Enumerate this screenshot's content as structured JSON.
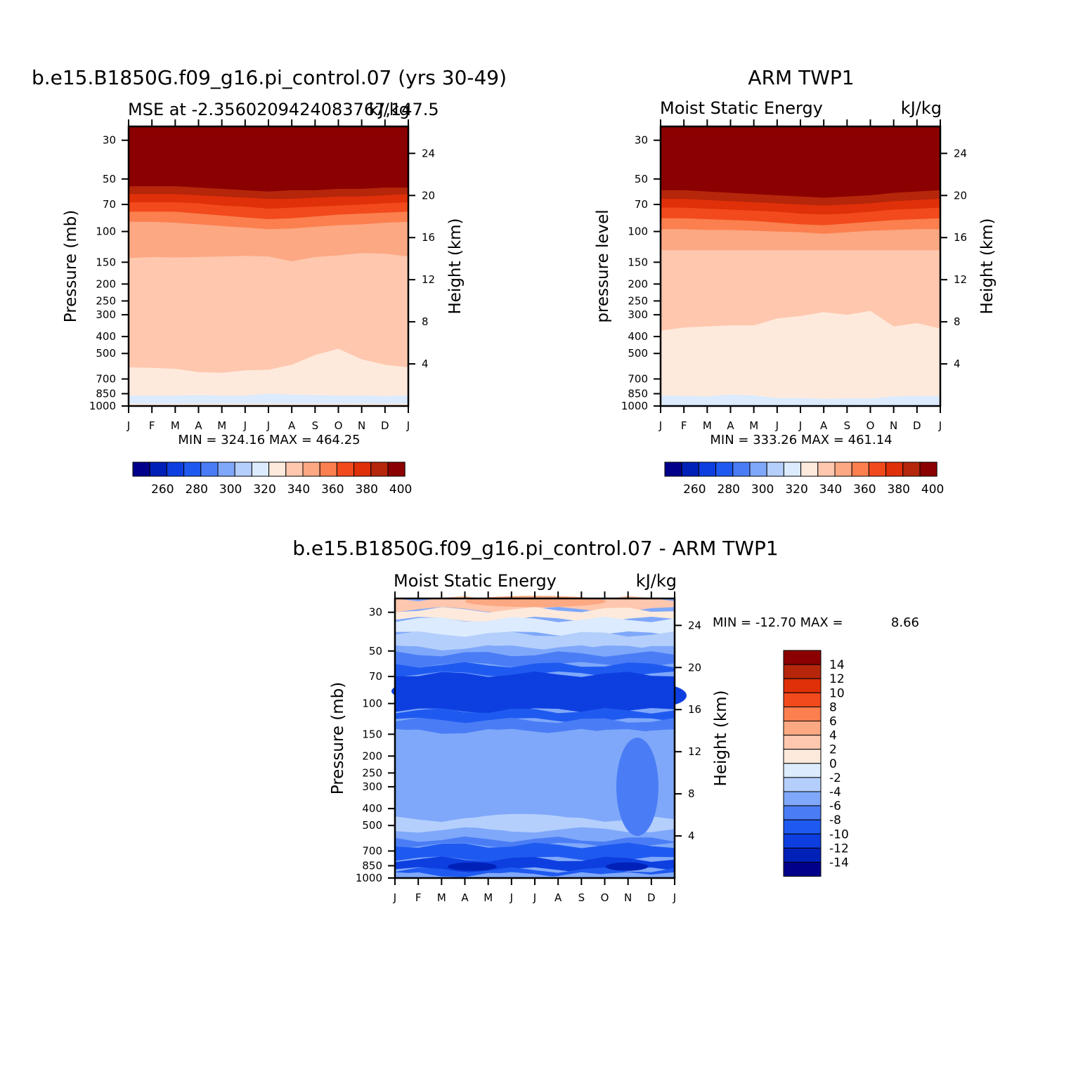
{
  "month_labels": [
    "J",
    "F",
    "M",
    "A",
    "M",
    "J",
    "J",
    "A",
    "S",
    "O",
    "N",
    "D",
    "J"
  ],
  "pressure_ticks": [
    30,
    50,
    70,
    100,
    150,
    200,
    250,
    300,
    400,
    500,
    700,
    850,
    1000
  ],
  "height_ticks": [
    4,
    8,
    12,
    16,
    20,
    24
  ],
  "colors": {
    "abs_palette": [
      "#00008b",
      "#0021b8",
      "#0d3fe0",
      "#1f5af0",
      "#4a7df5",
      "#7fa8fa",
      "#b5cffc",
      "#dcebfe",
      "#feeadc",
      "#fec7ae",
      "#fca882",
      "#fb7f4f",
      "#f24a1c",
      "#e03009",
      "#b5260b",
      "#8b0000"
    ],
    "diff_palette": [
      "#00008b",
      "#0021b8",
      "#0d3fe0",
      "#1f5af0",
      "#4a7df5",
      "#7fa8fa",
      "#b5cffc",
      "#dcebfe",
      "#feeadc",
      "#fec7ae",
      "#fca882",
      "#fb7f4f",
      "#f24a1c",
      "#e03009",
      "#b5260b",
      "#8b0000"
    ]
  },
  "panels": {
    "model": {
      "main_title": "b.e15.B1850G.f09_g16.pi_control.07 (yrs 30-49)",
      "left_title": "MSE at -2.3560209424083767,147.5",
      "right_title": "kJ/kg",
      "ylabel_left": "Pressure (mb)",
      "ylabel_right": "Height (km)",
      "stats": "MIN = 324.16 MAX = 464.25"
    },
    "obs": {
      "main_title": "ARM TWP1",
      "left_title": "Moist Static Energy",
      "right_title": "kJ/kg",
      "ylabel_left": "pressure level",
      "ylabel_right": "Height (km)",
      "stats": "MIN = 333.26 MAX = 461.14"
    },
    "diff": {
      "main_title": "b.e15.B1850G.f09_g16.pi_control.07 - ARM TWP1",
      "left_title": "Moist Static Energy",
      "right_title": "kJ/kg",
      "ylabel_left": "Pressure (mb)",
      "ylabel_right": "Height (km)",
      "stats_label": "MIN = -12.70 MAX =",
      "stats_max": "8.66"
    }
  },
  "colorbars": {
    "abs_labels": [
      "260",
      "280",
      "300",
      "320",
      "340",
      "360",
      "380",
      "400"
    ],
    "diff_labels": [
      "14",
      "12",
      "10",
      "8",
      "6",
      "4",
      "2",
      "0",
      "-2",
      "-4",
      "-6",
      "-8",
      "-10",
      "-12",
      "-14"
    ]
  },
  "chart_data": [
    {
      "type": "heatmap",
      "title": "b.e15.B1850G.f09_g16.pi_control.07 (yrs 30-49)",
      "subtitle": "MSE at -2.3560209424083767,147.5",
      "units": "kJ/kg",
      "ylabel": "Pressure (mb)",
      "y2label": "Height (km)",
      "x_categories": [
        "J",
        "F",
        "M",
        "A",
        "M",
        "J",
        "J",
        "A",
        "S",
        "O",
        "N",
        "D",
        "J"
      ],
      "y_pressure_ticks": [
        30,
        50,
        70,
        100,
        150,
        200,
        250,
        300,
        400,
        500,
        700,
        850,
        1000
      ],
      "y_log": true,
      "contour_levels": [
        250,
        260,
        270,
        280,
        290,
        300,
        310,
        320,
        330,
        340,
        350,
        360,
        370,
        380,
        390,
        400
      ],
      "boundaries": [
        {
          "level_above": 390,
          "pressures": [
            55,
            55,
            55,
            56,
            57,
            58,
            59,
            58,
            58,
            57,
            57,
            56,
            56
          ]
        },
        {
          "level_above": 380,
          "pressures": [
            61,
            61,
            61,
            62,
            63,
            64,
            65,
            65,
            64,
            63,
            63,
            62,
            61
          ]
        },
        {
          "level_above": 370,
          "pressures": [
            68,
            68,
            68,
            69,
            71,
            72,
            74,
            73,
            72,
            71,
            70,
            69,
            68
          ]
        },
        {
          "level_above": 360,
          "pressures": [
            77,
            77,
            77,
            79,
            81,
            83,
            85,
            84,
            82,
            80,
            79,
            78,
            77
          ]
        },
        {
          "level_above": 350,
          "pressures": [
            88,
            88,
            89,
            91,
            93,
            95,
            97,
            96,
            94,
            92,
            91,
            89,
            88
          ]
        },
        {
          "level_above": 340,
          "pressures": [
            142,
            140,
            141,
            140,
            139,
            138,
            139,
            148,
            140,
            137,
            133,
            134,
            139
          ]
        },
        {
          "level_above": 330,
          "pressures": [
            600,
            605,
            612,
            640,
            645,
            625,
            620,
            580,
            510,
            470,
            540,
            580,
            600
          ]
        },
        {
          "level_above": 320,
          "pressures": [
            870,
            870,
            870,
            865,
            870,
            870,
            850,
            860,
            865,
            870,
            870,
            875,
            870
          ]
        },
        {
          "level_above": 330,
          "pressures": [
            970,
            972,
            972,
            970,
            970,
            972,
            970,
            972,
            972,
            972,
            970,
            972,
            970
          ]
        }
      ],
      "value_range": {
        "min": 324.16,
        "max": 464.25
      }
    },
    {
      "type": "heatmap",
      "title": "ARM TWP1",
      "subtitle": "Moist Static Energy",
      "units": "kJ/kg",
      "ylabel": "pressure level",
      "y2label": "Height (km)",
      "x_categories": [
        "J",
        "F",
        "M",
        "A",
        "M",
        "J",
        "J",
        "A",
        "S",
        "O",
        "N",
        "D",
        "J"
      ],
      "y_pressure_ticks": [
        30,
        50,
        70,
        100,
        150,
        200,
        250,
        300,
        400,
        500,
        700,
        850,
        1000
      ],
      "y_log": true,
      "contour_levels": [
        250,
        260,
        270,
        280,
        290,
        300,
        310,
        320,
        330,
        340,
        350,
        360,
        370,
        380,
        390,
        400
      ],
      "boundaries": [
        {
          "level_above": 390,
          "pressures": [
            58,
            58,
            59,
            60,
            61,
            62,
            63,
            64,
            63,
            62,
            60,
            59,
            58
          ]
        },
        {
          "level_above": 380,
          "pressures": [
            65,
            65,
            66,
            67,
            68,
            69,
            70,
            71,
            70,
            69,
            67,
            66,
            65
          ]
        },
        {
          "level_above": 370,
          "pressures": [
            73,
            73,
            74,
            75,
            76,
            77,
            79,
            80,
            79,
            77,
            75,
            74,
            73
          ]
        },
        {
          "level_above": 360,
          "pressures": [
            84,
            84,
            85,
            86,
            87,
            89,
            91,
            92,
            90,
            88,
            86,
            85,
            84
          ]
        },
        {
          "level_above": 350,
          "pressures": [
            97,
            97,
            98,
            98,
            99,
            100,
            101,
            103,
            101,
            99,
            98,
            97,
            97
          ]
        },
        {
          "level_above": 340,
          "pressures": [
            128,
            128,
            128,
            128,
            128,
            128,
            128,
            128,
            128,
            128,
            128,
            128,
            128
          ]
        },
        {
          "level_above": 330,
          "pressures": [
            370,
            355,
            350,
            345,
            345,
            315,
            305,
            290,
            300,
            285,
            350,
            335,
            360
          ]
        },
        {
          "level_above": 320,
          "pressures": [
            870,
            875,
            880,
            860,
            870,
            900,
            900,
            910,
            905,
            905,
            880,
            875,
            875
          ]
        }
      ],
      "value_range": {
        "min": 333.26,
        "max": 461.14
      }
    },
    {
      "type": "heatmap",
      "title": "b.e15.B1850G.f09_g16.pi_control.07 - ARM TWP1",
      "subtitle": "Moist Static Energy",
      "units": "kJ/kg",
      "ylabel": "Pressure (mb)",
      "y2label": "Height (km)",
      "x_categories": [
        "J",
        "F",
        "M",
        "A",
        "M",
        "J",
        "J",
        "A",
        "S",
        "O",
        "N",
        "D",
        "J"
      ],
      "y_pressure_ticks": [
        30,
        50,
        70,
        100,
        150,
        200,
        250,
        300,
        400,
        500,
        700,
        850,
        1000
      ],
      "y_log": true,
      "contour_levels": [
        -14,
        -12,
        -10,
        -8,
        -6,
        -4,
        -2,
        0,
        2,
        4,
        6,
        8,
        10,
        12,
        14
      ],
      "bands": [
        {
          "value": 3,
          "p_top": 25,
          "p_bot": 29
        },
        {
          "value": 1,
          "p_top": 29,
          "p_bot": 33
        },
        {
          "value": -1,
          "p_top": 33,
          "p_bot": 40
        },
        {
          "value": -3,
          "p_top": 40,
          "p_bot": 48
        },
        {
          "value": -5,
          "p_top": 48,
          "p_bot": 52
        },
        {
          "value": -7,
          "p_top": 52,
          "p_bot": 60
        },
        {
          "value": -9,
          "p_top": 60,
          "p_bot": 68
        },
        {
          "value": -11,
          "p_top": 68,
          "p_bot": 110
        },
        {
          "value": -9,
          "p_top": 110,
          "p_bot": 125
        },
        {
          "value": -7,
          "p_top": 125,
          "p_bot": 145
        },
        {
          "value": -5,
          "p_top": 145,
          "p_bot": 530
        },
        {
          "value": -3,
          "p_top": 460,
          "p_bot": 530
        },
        {
          "value": -7,
          "p_top": 600,
          "p_bot": 650
        },
        {
          "value": -9,
          "p_top": 650,
          "p_bot": 780
        },
        {
          "value": -11,
          "p_top": 780,
          "p_bot": 900
        },
        {
          "value": -9,
          "p_top": 900,
          "p_bot": 960
        },
        {
          "value": -5,
          "p_top": 960,
          "p_bot": 1000
        }
      ],
      "value_range": {
        "min": -12.7,
        "max": 8.66
      }
    }
  ]
}
